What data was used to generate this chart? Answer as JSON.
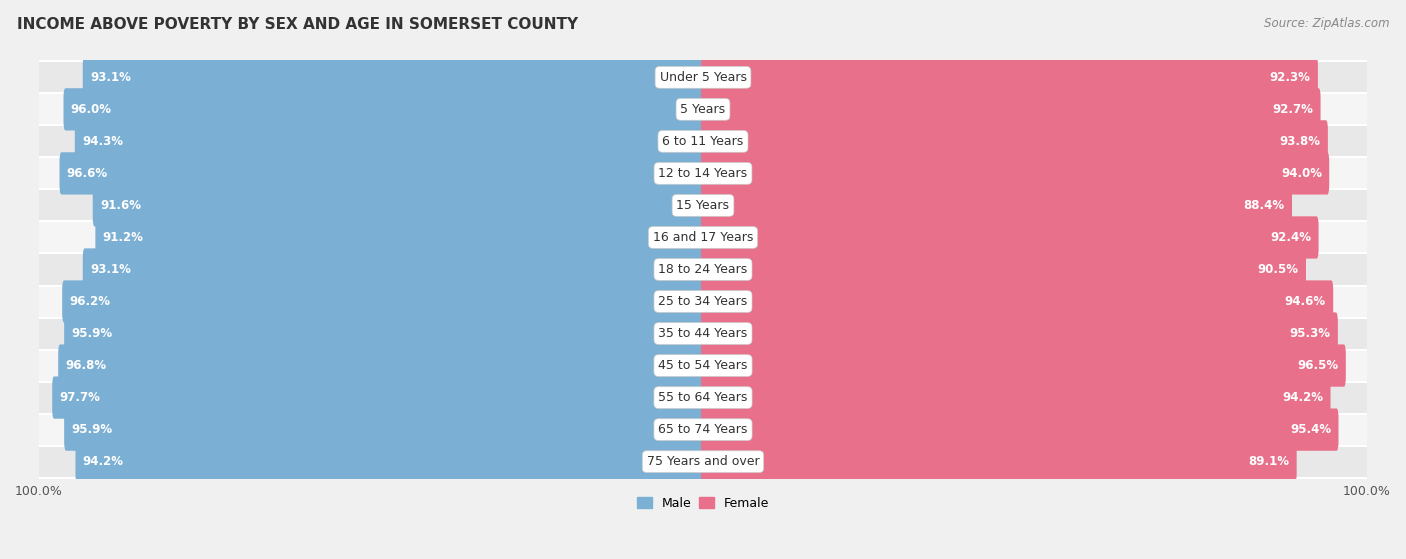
{
  "title": "INCOME ABOVE POVERTY BY SEX AND AGE IN SOMERSET COUNTY",
  "source": "Source: ZipAtlas.com",
  "categories": [
    "Under 5 Years",
    "5 Years",
    "6 to 11 Years",
    "12 to 14 Years",
    "15 Years",
    "16 and 17 Years",
    "18 to 24 Years",
    "25 to 34 Years",
    "35 to 44 Years",
    "45 to 54 Years",
    "55 to 64 Years",
    "65 to 74 Years",
    "75 Years and over"
  ],
  "male_values": [
    93.1,
    96.0,
    94.3,
    96.6,
    91.6,
    91.2,
    93.1,
    96.2,
    95.9,
    96.8,
    97.7,
    95.9,
    94.2
  ],
  "female_values": [
    92.3,
    92.7,
    93.8,
    94.0,
    88.4,
    92.4,
    90.5,
    94.6,
    95.3,
    96.5,
    94.2,
    95.4,
    89.1
  ],
  "male_color": "#7bafd4",
  "male_color_light": "#b8d4ea",
  "female_color": "#e8708a",
  "female_color_light": "#f0a8bc",
  "male_label": "Male",
  "female_label": "Female",
  "axis_max": 100,
  "background_color": "#f0f0f0",
  "row_bg_even": "#e8e8e8",
  "row_bg_odd": "#f5f5f5",
  "title_fontsize": 11,
  "source_fontsize": 8.5,
  "label_fontsize": 8.5,
  "category_fontsize": 9,
  "tick_fontsize": 9
}
